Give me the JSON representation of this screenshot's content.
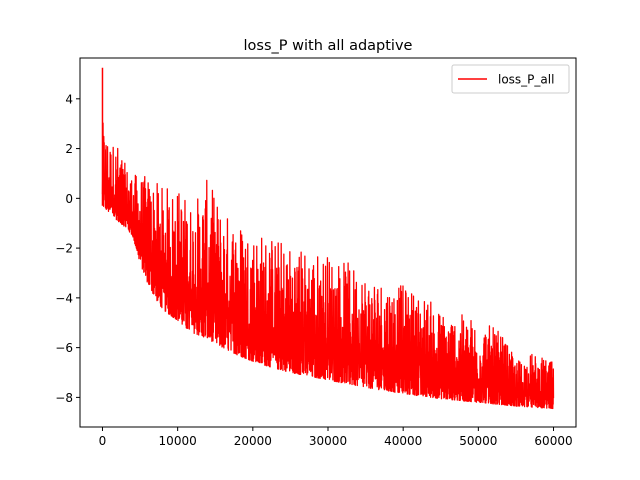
{
  "chart_data": {
    "type": "line",
    "title": "loss_P with all adaptive",
    "xlabel": "",
    "ylabel": "",
    "xlim": [
      -2990,
      62990
    ],
    "ylim": [
      -9.19,
      5.64
    ],
    "xticks": [
      0,
      10000,
      20000,
      30000,
      40000,
      50000,
      60000
    ],
    "xtick_labels": [
      "0",
      "10000",
      "20000",
      "30000",
      "40000",
      "50000",
      "60000"
    ],
    "yticks": [
      4,
      2,
      0,
      -2,
      -4,
      -6,
      -8
    ],
    "ytick_labels": [
      "4",
      "2",
      "0",
      "−2",
      "−4",
      "−6",
      "−8"
    ],
    "grid": false,
    "legend_position": "top-right",
    "series": [
      {
        "name": "loss_P_all",
        "color": "#ff0000",
        "x_range": [
          0,
          60000
        ],
        "start_peak": {
          "x": 0,
          "y": 5.25
        },
        "lower_envelope": [
          [
            0,
            -0.3
          ],
          [
            1000,
            -0.6
          ],
          [
            2000,
            -0.9
          ],
          [
            3000,
            -1.15
          ],
          [
            4000,
            -1.5
          ],
          [
            5000,
            -2.6
          ],
          [
            6000,
            -3.4
          ],
          [
            7000,
            -4.0
          ],
          [
            8000,
            -4.45
          ],
          [
            9000,
            -4.7
          ],
          [
            10000,
            -4.9
          ],
          [
            11000,
            -5.2
          ],
          [
            12000,
            -5.4
          ],
          [
            14000,
            -5.65
          ],
          [
            16000,
            -6.0
          ],
          [
            18000,
            -6.3
          ],
          [
            20000,
            -6.55
          ],
          [
            22000,
            -6.75
          ],
          [
            25000,
            -7.0
          ],
          [
            30000,
            -7.3
          ],
          [
            35000,
            -7.6
          ],
          [
            40000,
            -7.85
          ],
          [
            45000,
            -8.05
          ],
          [
            50000,
            -8.2
          ],
          [
            55000,
            -8.35
          ],
          [
            60000,
            -8.45
          ]
        ],
        "upper_envelope": [
          [
            0,
            3.1
          ],
          [
            1000,
            2.3
          ],
          [
            2000,
            2.2
          ],
          [
            3000,
            1.4
          ],
          [
            4000,
            1.0
          ],
          [
            6000,
            0.9
          ],
          [
            8000,
            0.5
          ],
          [
            10000,
            0.5
          ],
          [
            12000,
            -0.2
          ],
          [
            14000,
            0.8
          ],
          [
            16000,
            -0.5
          ],
          [
            18000,
            -0.8
          ],
          [
            20000,
            -1.2
          ],
          [
            22000,
            -1.4
          ],
          [
            25000,
            -1.8
          ],
          [
            30000,
            -2.2
          ],
          [
            35000,
            -2.9
          ],
          [
            40000,
            -3.5
          ],
          [
            43000,
            -3.9
          ],
          [
            45000,
            -4.5
          ],
          [
            50000,
            -4.8
          ],
          [
            53000,
            -5.4
          ],
          [
            55000,
            -6.5
          ],
          [
            57000,
            -6.2
          ],
          [
            60000,
            -6.6
          ]
        ]
      }
    ]
  }
}
